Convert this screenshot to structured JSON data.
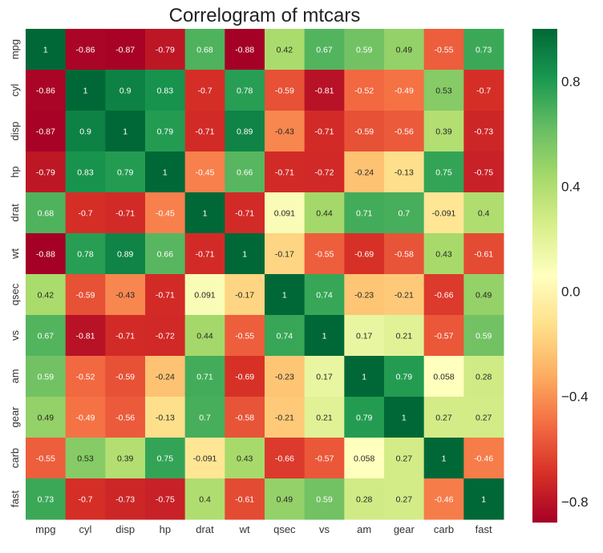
{
  "chart_data": {
    "type": "heatmap",
    "title": "Correlogram of mtcars",
    "variables": [
      "mpg",
      "cyl",
      "disp",
      "hp",
      "drat",
      "wt",
      "qsec",
      "vs",
      "am",
      "gear",
      "carb",
      "fast"
    ],
    "matrix": [
      [
        1,
        -0.86,
        -0.87,
        -0.79,
        0.68,
        -0.88,
        0.42,
        0.67,
        0.59,
        0.49,
        -0.55,
        0.73
      ],
      [
        -0.86,
        1,
        0.9,
        0.83,
        -0.7,
        0.78,
        -0.59,
        -0.81,
        -0.52,
        -0.49,
        0.53,
        -0.7
      ],
      [
        -0.87,
        0.9,
        1,
        0.79,
        -0.71,
        0.89,
        -0.43,
        -0.71,
        -0.59,
        -0.56,
        0.39,
        -0.73
      ],
      [
        -0.79,
        0.83,
        0.79,
        1,
        -0.45,
        0.66,
        -0.71,
        -0.72,
        -0.24,
        -0.13,
        0.75,
        -0.75
      ],
      [
        0.68,
        -0.7,
        -0.71,
        -0.45,
        1,
        -0.71,
        0.091,
        0.44,
        0.71,
        0.7,
        -0.091,
        0.4
      ],
      [
        -0.88,
        0.78,
        0.89,
        0.66,
        -0.71,
        1,
        -0.17,
        -0.55,
        -0.69,
        -0.58,
        0.43,
        -0.61
      ],
      [
        0.42,
        -0.59,
        -0.43,
        -0.71,
        0.091,
        -0.17,
        1,
        0.74,
        -0.23,
        -0.21,
        -0.66,
        0.49
      ],
      [
        0.67,
        -0.81,
        -0.71,
        -0.72,
        0.44,
        -0.55,
        0.74,
        1,
        0.17,
        0.21,
        -0.57,
        0.59
      ],
      [
        0.59,
        -0.52,
        -0.59,
        -0.24,
        0.71,
        -0.69,
        -0.23,
        0.17,
        1,
        0.79,
        0.058,
        0.28
      ],
      [
        0.49,
        -0.49,
        -0.56,
        -0.13,
        0.7,
        -0.58,
        -0.21,
        0.21,
        0.79,
        1,
        0.27,
        0.27
      ],
      [
        -0.55,
        0.53,
        0.39,
        0.75,
        -0.091,
        0.43,
        -0.66,
        -0.57,
        0.058,
        0.27,
        1,
        -0.46
      ],
      [
        0.73,
        -0.7,
        -0.73,
        -0.75,
        0.4,
        -0.61,
        0.49,
        0.59,
        0.28,
        0.27,
        -0.46,
        1
      ]
    ],
    "labels": [
      [
        "1",
        "-0.86",
        "-0.87",
        "-0.79",
        "0.68",
        "-0.88",
        "0.42",
        "0.67",
        "0.59",
        "0.49",
        "-0.55",
        "0.73"
      ],
      [
        "-0.86",
        "1",
        "0.9",
        "0.83",
        "-0.7",
        "0.78",
        "-0.59",
        "-0.81",
        "-0.52",
        "-0.49",
        "0.53",
        "-0.7"
      ],
      [
        "-0.87",
        "0.9",
        "1",
        "0.79",
        "-0.71",
        "0.89",
        "-0.43",
        "-0.71",
        "-0.59",
        "-0.56",
        "0.39",
        "-0.73"
      ],
      [
        "-0.79",
        "0.83",
        "0.79",
        "1",
        "-0.45",
        "0.66",
        "-0.71",
        "-0.72",
        "-0.24",
        "-0.13",
        "0.75",
        "-0.75"
      ],
      [
        "0.68",
        "-0.7",
        "-0.71",
        "-0.45",
        "1",
        "-0.71",
        "0.091",
        "0.44",
        "0.71",
        "0.7",
        "-0.091",
        "0.4"
      ],
      [
        "-0.88",
        "0.78",
        "0.89",
        "0.66",
        "-0.71",
        "1",
        "-0.17",
        "-0.55",
        "-0.69",
        "-0.58",
        "0.43",
        "-0.61"
      ],
      [
        "0.42",
        "-0.59",
        "-0.43",
        "-0.71",
        "0.091",
        "-0.17",
        "1",
        "0.74",
        "-0.23",
        "-0.21",
        "-0.66",
        "0.49"
      ],
      [
        "0.67",
        "-0.81",
        "-0.71",
        "-0.72",
        "0.44",
        "-0.55",
        "0.74",
        "1",
        "0.17",
        "0.21",
        "-0.57",
        "0.59"
      ],
      [
        "0.59",
        "-0.52",
        "-0.59",
        "-0.24",
        "0.71",
        "-0.69",
        "-0.23",
        "0.17",
        "1",
        "0.79",
        "0.058",
        "0.28"
      ],
      [
        "0.49",
        "-0.49",
        "-0.56",
        "-0.13",
        "0.7",
        "-0.58",
        "-0.21",
        "0.21",
        "0.79",
        "1",
        "0.27",
        "0.27"
      ],
      [
        "-0.55",
        "0.53",
        "0.39",
        "0.75",
        "-0.091",
        "0.43",
        "-0.66",
        "-0.57",
        "0.058",
        "0.27",
        "1",
        "-0.46"
      ],
      [
        "0.73",
        "-0.7",
        "-0.73",
        "-0.75",
        "0.4",
        "-0.61",
        "0.49",
        "0.59",
        "0.28",
        "0.27",
        "-0.46",
        "1"
      ]
    ],
    "colormap": "RdYlGn",
    "vmin": -0.88,
    "vmax": 1,
    "colorbar_ticks": [
      0.8,
      0.4,
      0.0,
      -0.4,
      -0.8
    ],
    "colorbar_tick_labels": [
      "0.8",
      "0.4",
      "0.0",
      "−0.4",
      "−0.8"
    ],
    "xlabel": "",
    "ylabel": ""
  }
}
